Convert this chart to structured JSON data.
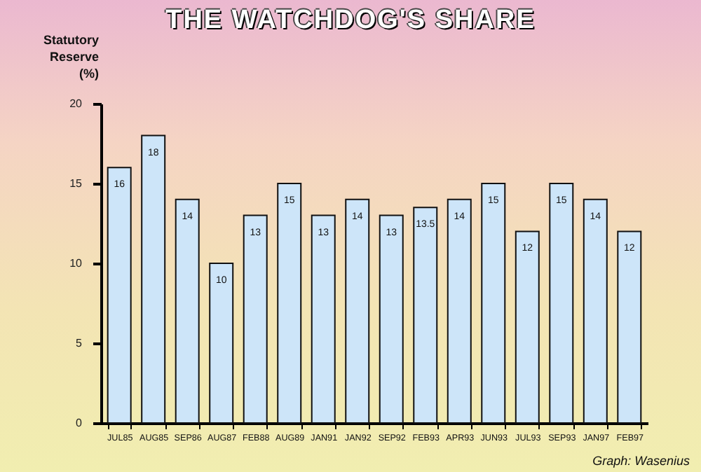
{
  "chart_data": {
    "type": "bar",
    "title": "THE WATCHDOG'S SHARE",
    "ylabel": "Statutory Reserve (%)",
    "categories": [
      "JUL85",
      "AUG85",
      "SEP86",
      "AUG87",
      "FEB88",
      "AUG89",
      "JAN91",
      "JAN92",
      "SEP92",
      "FEB93",
      "APR93",
      "JUN93",
      "JUL93",
      "SEP93",
      "JAN97",
      "FEB97"
    ],
    "values": [
      16,
      18,
      14,
      10,
      13,
      15,
      13,
      14,
      13,
      13.5,
      14,
      15,
      12,
      15,
      14,
      12
    ],
    "color": "#cde5f9",
    "ylim": [
      0,
      20
    ],
    "yticks": [
      0,
      5,
      10,
      15,
      20
    ],
    "grid": false,
    "data_labels": true,
    "annotations": [
      "Graph: Wasenius"
    ]
  }
}
